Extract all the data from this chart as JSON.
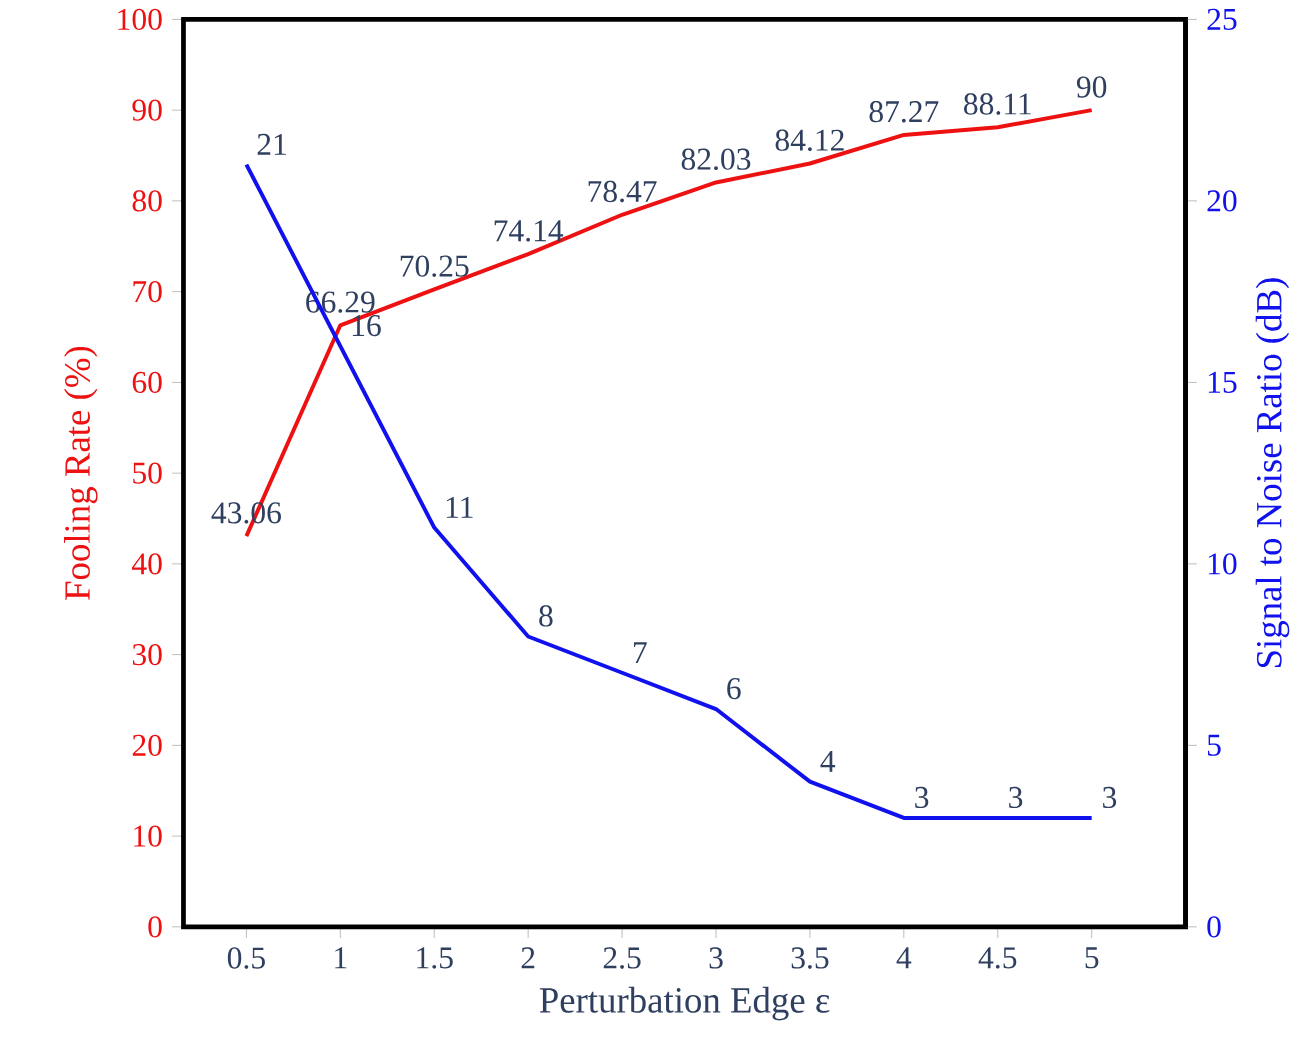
{
  "chart_data": {
    "type": "line",
    "xlabel": "Perturbation Edge ε",
    "ylabel": "Fooling Rate (%)",
    "y2label": "Signal to Noise Ratio (dB)",
    "categories": [
      "0.5",
      "1",
      "1.5",
      "2",
      "2.5",
      "3",
      "3.5",
      "4",
      "4.5",
      "5"
    ],
    "series": [
      {
        "axis": "y",
        "color": "#ee1111",
        "values": [
          43.06,
          66.29,
          70.25,
          74.14,
          78.47,
          82.03,
          84.12,
          87.27,
          88.11,
          90
        ]
      },
      {
        "axis": "y2",
        "color": "#1111ee",
        "values": [
          21,
          16,
          11,
          8,
          7,
          6,
          4,
          3,
          3,
          3
        ]
      }
    ],
    "ylim": [
      0,
      100
    ],
    "yticks": [
      0,
      10,
      20,
      30,
      40,
      50,
      60,
      70,
      80,
      90,
      100
    ],
    "y2lim": [
      0,
      25
    ],
    "y2ticks": [
      0,
      5,
      10,
      15,
      20,
      25
    ],
    "data_labels": true,
    "grid": false,
    "marker": "none",
    "line_style": "solid"
  }
}
